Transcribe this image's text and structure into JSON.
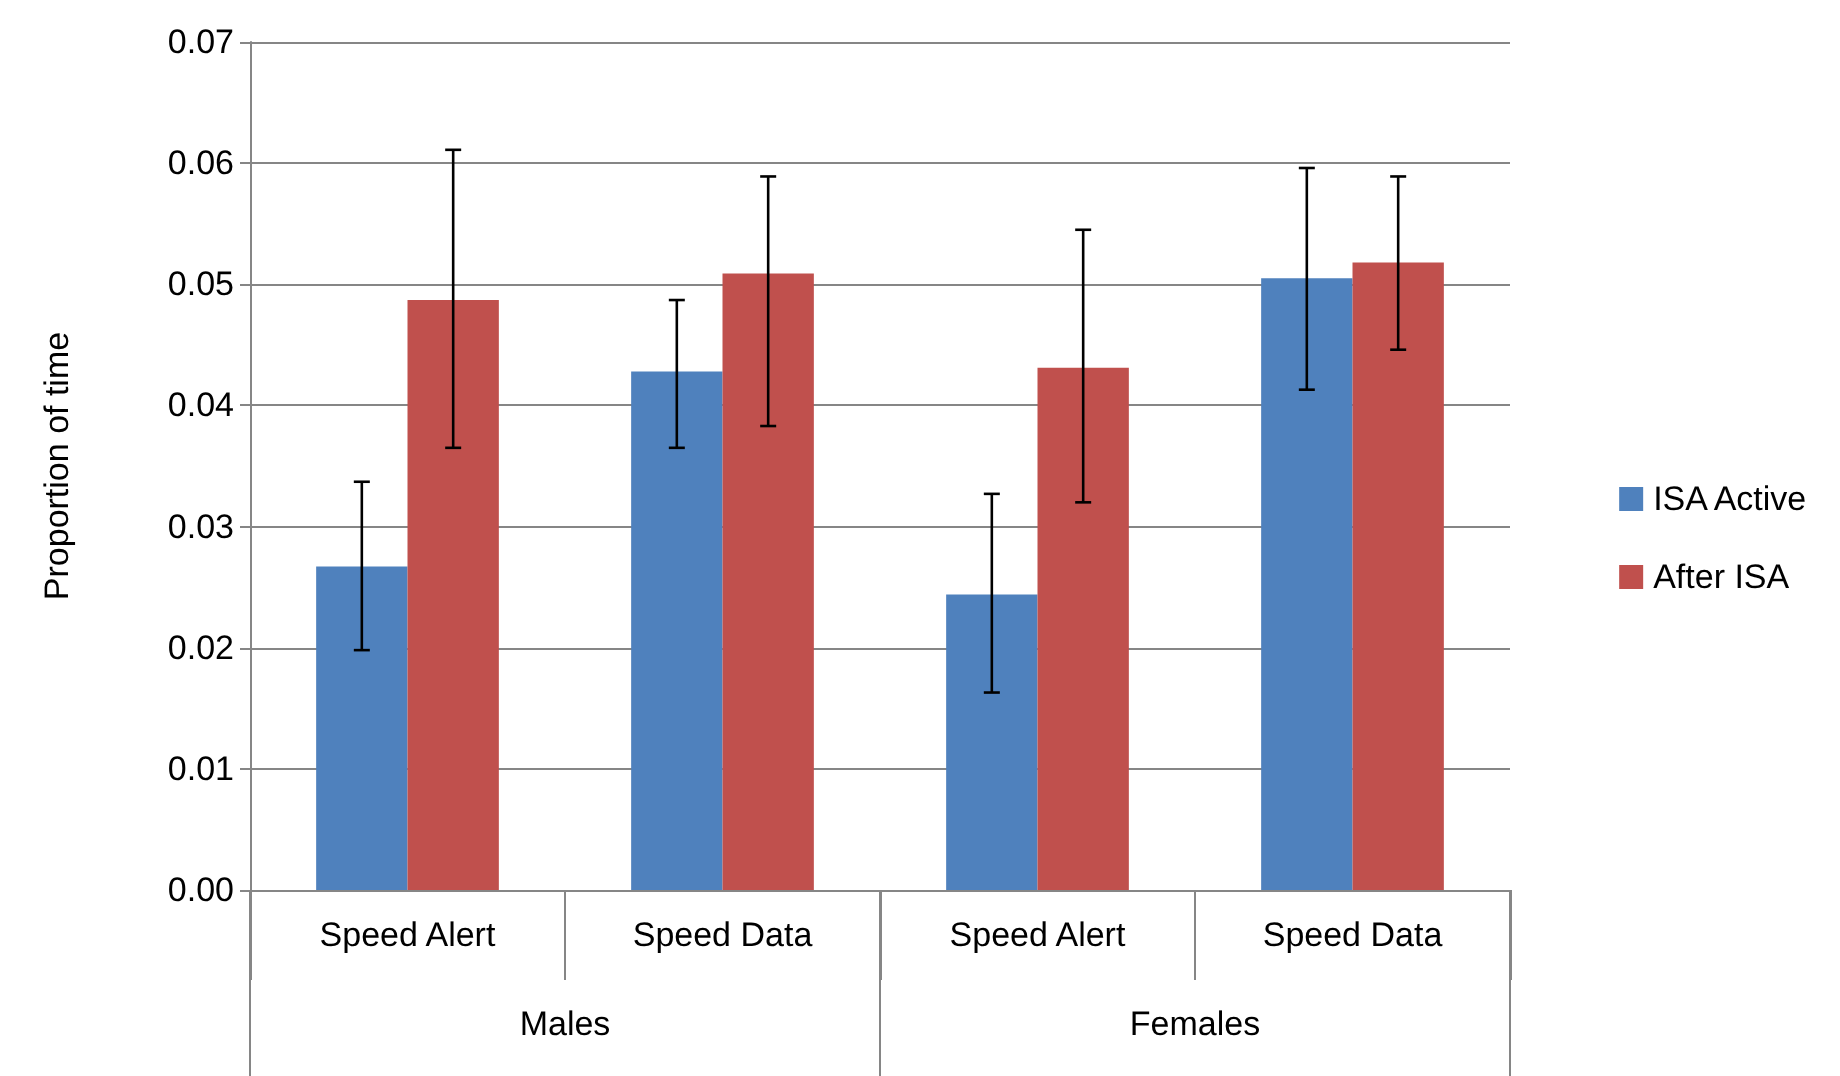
{
  "chart_data": {
    "type": "bar",
    "ylabel": "Proportion of time",
    "categories": [
      "Speed Alert",
      "Speed Data",
      "Speed Alert",
      "Speed Data"
    ],
    "annotations": [
      "Males",
      "Females"
    ],
    "series": [
      {
        "name": "ISA Active",
        "color": "#4f81bd",
        "values": [
          0.0267,
          0.0428,
          0.0244,
          0.0505
        ],
        "errors": [
          [
            0.0198,
            0.0337
          ],
          [
            0.0365,
            0.0487
          ],
          [
            0.0163,
            0.0327
          ],
          [
            0.0413,
            0.0596
          ]
        ]
      },
      {
        "name": "After ISA",
        "color": "#c0504d",
        "values": [
          0.0487,
          0.0509,
          0.0431,
          0.0518
        ],
        "errors": [
          [
            0.0365,
            0.0611
          ],
          [
            0.0383,
            0.0589
          ],
          [
            0.032,
            0.0545
          ],
          [
            0.0446,
            0.0589
          ]
        ]
      }
    ],
    "ylim": [
      0,
      0.07
    ],
    "yticks": [
      {
        "value": 0,
        "label": "0.00"
      },
      {
        "value": 0.01,
        "label": "0.01"
      },
      {
        "value": 0.02,
        "label": "0.02"
      },
      {
        "value": 0.03,
        "label": "0.03"
      },
      {
        "value": 0.04,
        "label": "0.04"
      },
      {
        "value": 0.05,
        "label": "0.05"
      },
      {
        "value": 0.06,
        "label": "0.06"
      },
      {
        "value": 0.07,
        "label": "0.07"
      }
    ],
    "grid": "y",
    "legend": "right"
  }
}
